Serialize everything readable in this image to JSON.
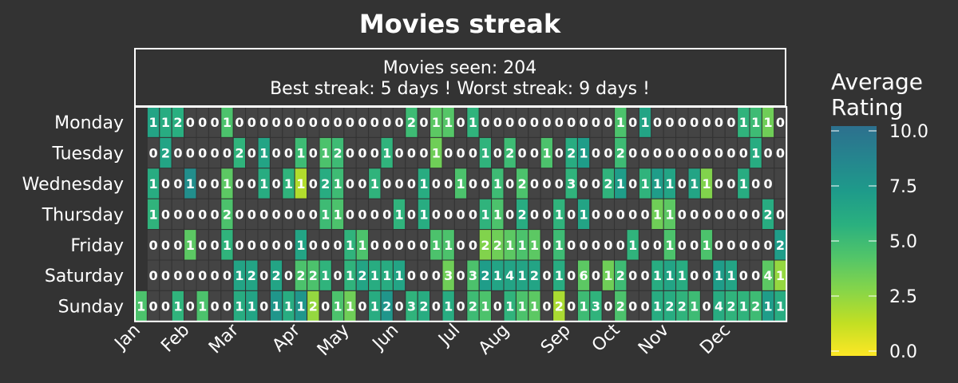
{
  "title": "Movies streak",
  "info": {
    "line1": "Movies seen: 204",
    "line2": "Best streak: 5 days ! Worst streak: 9 days !"
  },
  "colorbar": {
    "title_line1": "Average",
    "title_line2": "Rating",
    "ticks": [
      "10.0",
      "7.5",
      "5.0",
      "2.5",
      "0.0"
    ]
  },
  "colors": {
    "background": "#333333",
    "empty_cell": "#444444",
    "cell_border": "#333333",
    "frame": "#ffffff",
    "colormap": [
      "#fde725",
      "#c2df23",
      "#86d549",
      "#52c569",
      "#2ab07f",
      "#1e9b8a",
      "#25858e",
      "#2d708e"
    ]
  },
  "chart_data": {
    "type": "heatmap",
    "title": "Movies streak",
    "xlabel": "",
    "ylabel": "",
    "rows": [
      "Monday",
      "Tuesday",
      "Wednesday",
      "Thursday",
      "Friday",
      "Saturday",
      "Sunday"
    ],
    "month_labels": [
      "Jan",
      "Feb",
      "Mar",
      "Apr",
      "May",
      "Jun",
      "Jul",
      "Aug",
      "Sep",
      "Oct",
      "Nov",
      "Dec"
    ],
    "month_week_index": [
      0,
      4,
      8,
      13,
      17,
      21,
      26,
      30,
      35,
      39,
      43,
      48
    ],
    "color_scale": {
      "label": "Average Rating",
      "min": 0.0,
      "max": 10.0
    },
    "first_week_starts_on_row": 6,
    "counts": [
      [
        null,
        1,
        1,
        2,
        0,
        0,
        0,
        1,
        0,
        0,
        0,
        0,
        0,
        0,
        0,
        0,
        0,
        0,
        0,
        0,
        0,
        0,
        2,
        0,
        1,
        1,
        0,
        1,
        0,
        0,
        0,
        0,
        0,
        0,
        0,
        0,
        0,
        0,
        0,
        1,
        0,
        1,
        0,
        0,
        0,
        0,
        0,
        0,
        0,
        1,
        1,
        1,
        0
      ],
      [
        null,
        0,
        2,
        0,
        0,
        0,
        0,
        0,
        2,
        0,
        1,
        0,
        0,
        1,
        0,
        1,
        2,
        0,
        0,
        0,
        1,
        0,
        0,
        0,
        1,
        0,
        0,
        0,
        1,
        0,
        2,
        0,
        0,
        1,
        0,
        2,
        1,
        0,
        0,
        2,
        0,
        0,
        0,
        0,
        0,
        0,
        0,
        0,
        0,
        0,
        1,
        0,
        0
      ],
      [
        null,
        1,
        0,
        0,
        1,
        0,
        0,
        1,
        0,
        0,
        1,
        0,
        1,
        1,
        0,
        2,
        1,
        0,
        0,
        1,
        0,
        0,
        0,
        1,
        0,
        0,
        1,
        0,
        0,
        1,
        0,
        2,
        0,
        0,
        0,
        3,
        0,
        0,
        2,
        1,
        0,
        1,
        1,
        1,
        0,
        1,
        1,
        0,
        0,
        1,
        0,
        0
      ],
      [
        null,
        1,
        0,
        0,
        0,
        0,
        0,
        2,
        0,
        0,
        0,
        0,
        0,
        0,
        0,
        1,
        1,
        0,
        0,
        0,
        0,
        1,
        0,
        1,
        0,
        0,
        0,
        0,
        1,
        1,
        0,
        2,
        0,
        0,
        1,
        0,
        1,
        0,
        0,
        0,
        0,
        0,
        1,
        1,
        0,
        0,
        0,
        0,
        0,
        0,
        0,
        2,
        0
      ],
      [
        null,
        0,
        0,
        0,
        1,
        0,
        0,
        1,
        0,
        0,
        0,
        0,
        0,
        1,
        0,
        0,
        0,
        1,
        1,
        0,
        0,
        0,
        0,
        0,
        1,
        1,
        0,
        0,
        2,
        2,
        1,
        1,
        1,
        0,
        1,
        0,
        0,
        0,
        0,
        0,
        1,
        0,
        0,
        1,
        0,
        0,
        1,
        0,
        0,
        0,
        0,
        0,
        2
      ],
      [
        null,
        0,
        0,
        0,
        0,
        0,
        0,
        0,
        1,
        2,
        0,
        2,
        0,
        2,
        2,
        1,
        0,
        1,
        2,
        1,
        1,
        1,
        0,
        0,
        0,
        3,
        0,
        3,
        2,
        1,
        4,
        1,
        2,
        0,
        1,
        0,
        6,
        0,
        1,
        2,
        0,
        0,
        1,
        1,
        1,
        0,
        0,
        1,
        1,
        0,
        0,
        4,
        1
      ],
      [
        1,
        0,
        0,
        1,
        0,
        1,
        0,
        0,
        1,
        1,
        0,
        1,
        1,
        1,
        2,
        0,
        1,
        1,
        0,
        1,
        2,
        0,
        3,
        2,
        0,
        1,
        0,
        2,
        1,
        0,
        1,
        1,
        1,
        0,
        2,
        0,
        1,
        3,
        0,
        2,
        0,
        0,
        1,
        2,
        2,
        1,
        0,
        4,
        2,
        1,
        2,
        1,
        1
      ]
    ],
    "ratings": [
      [
        null,
        6.5,
        6.0,
        5.8,
        null,
        null,
        null,
        4.5,
        null,
        null,
        null,
        null,
        null,
        null,
        null,
        null,
        null,
        null,
        null,
        null,
        null,
        null,
        5.0,
        null,
        4.0,
        4.2,
        null,
        5.5,
        null,
        null,
        null,
        null,
        null,
        null,
        null,
        null,
        null,
        null,
        null,
        4.5,
        null,
        6.5,
        null,
        null,
        null,
        null,
        null,
        null,
        null,
        5.5,
        5.0,
        3.5,
        null
      ],
      [
        null,
        null,
        6.5,
        null,
        null,
        null,
        null,
        null,
        5.5,
        null,
        6.5,
        null,
        null,
        5.0,
        null,
        4.5,
        5.0,
        null,
        null,
        null,
        5.5,
        null,
        null,
        null,
        3.5,
        null,
        null,
        null,
        5.5,
        null,
        5.0,
        null,
        null,
        4.5,
        null,
        6.0,
        7.0,
        null,
        null,
        5.0,
        null,
        null,
        null,
        null,
        null,
        null,
        null,
        null,
        null,
        null,
        6.0,
        null,
        null
      ],
      [
        null,
        6.0,
        null,
        null,
        8.0,
        null,
        null,
        4.0,
        null,
        null,
        6.0,
        null,
        5.5,
        1.8,
        null,
        6.0,
        5.0,
        null,
        null,
        5.5,
        null,
        null,
        null,
        6.0,
        null,
        null,
        4.5,
        null,
        null,
        5.0,
        null,
        4.5,
        null,
        null,
        null,
        5.5,
        null,
        null,
        5.5,
        7.0,
        null,
        5.5,
        7.0,
        6.5,
        null,
        6.5,
        3.0,
        null,
        null,
        6.0,
        null,
        null
      ],
      [
        null,
        5.5,
        null,
        null,
        null,
        null,
        null,
        4.5,
        null,
        null,
        null,
        null,
        null,
        null,
        null,
        5.0,
        4.5,
        null,
        null,
        null,
        null,
        5.5,
        null,
        6.0,
        null,
        null,
        null,
        null,
        5.5,
        4.5,
        null,
        6.0,
        null,
        null,
        5.5,
        null,
        6.5,
        null,
        null,
        null,
        null,
        null,
        3.5,
        4.0,
        null,
        null,
        null,
        null,
        null,
        null,
        null,
        6.0,
        null
      ],
      [
        null,
        null,
        null,
        null,
        4.0,
        null,
        null,
        5.5,
        null,
        null,
        null,
        null,
        null,
        6.5,
        null,
        null,
        null,
        5.5,
        4.5,
        null,
        null,
        null,
        null,
        null,
        4.5,
        4.5,
        null,
        null,
        3.0,
        3.5,
        4.0,
        4.5,
        4.0,
        null,
        5.0,
        null,
        null,
        null,
        null,
        null,
        5.5,
        null,
        null,
        4.5,
        null,
        null,
        4.5,
        null,
        null,
        null,
        null,
        null,
        7.0
      ],
      [
        null,
        null,
        null,
        null,
        null,
        null,
        null,
        null,
        6.5,
        6.5,
        null,
        6.5,
        null,
        4.5,
        4.5,
        5.5,
        null,
        5.5,
        6.5,
        6.0,
        6.0,
        6.5,
        null,
        null,
        null,
        3.5,
        null,
        4.5,
        7.0,
        6.5,
        6.5,
        6.5,
        6.5,
        null,
        6.0,
        null,
        4.0,
        null,
        3.5,
        5.0,
        null,
        null,
        6.0,
        6.5,
        6.0,
        null,
        null,
        7.0,
        6.5,
        null,
        null,
        4.0,
        2.5
      ],
      [
        4.5,
        null,
        null,
        5.5,
        null,
        4.5,
        null,
        null,
        6.0,
        6.5,
        null,
        7.5,
        6.0,
        7.5,
        2.5,
        null,
        4.5,
        3.5,
        null,
        6.0,
        7.5,
        null,
        5.5,
        6.0,
        null,
        6.0,
        null,
        5.0,
        4.5,
        null,
        5.5,
        4.5,
        4.0,
        null,
        2.0,
        null,
        5.0,
        5.5,
        null,
        4.5,
        null,
        null,
        6.0,
        6.0,
        5.5,
        5.0,
        null,
        6.0,
        5.5,
        5.5,
        5.0,
        7.0,
        6.0
      ]
    ]
  }
}
